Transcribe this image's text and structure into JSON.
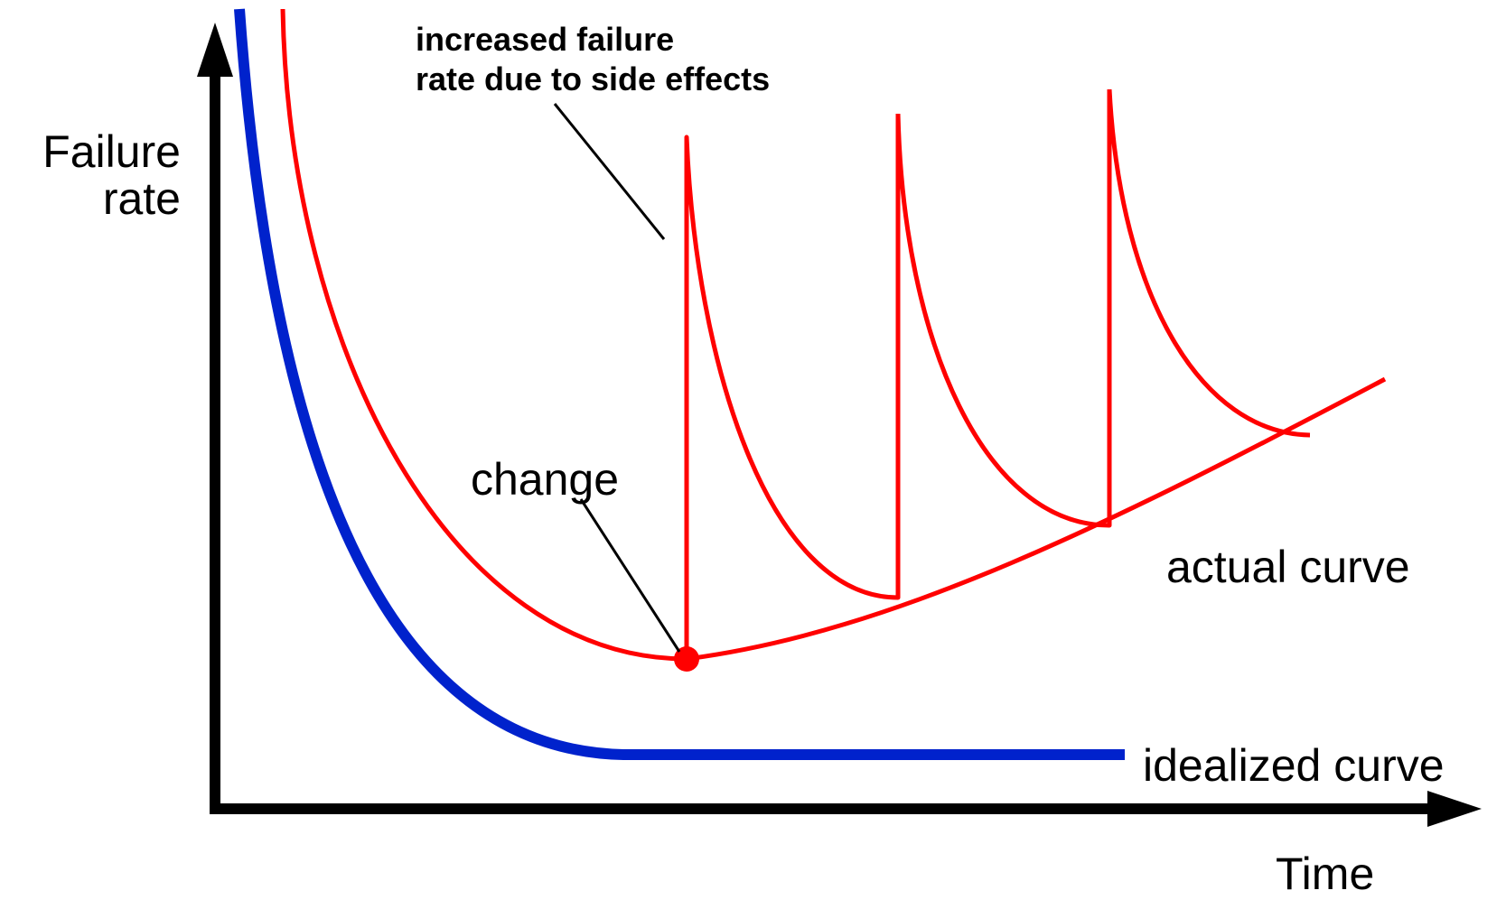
{
  "axes": {
    "y_label_line1": "Failure",
    "y_label_line2": "rate",
    "x_label": "Time"
  },
  "annotations": {
    "side_effects_line1": "increased failure",
    "side_effects_line2": "rate due to side effects",
    "change": "change",
    "actual_curve": "actual curve",
    "idealized_curve": "idealized curve"
  },
  "colors": {
    "actual_curve": "#ff0000",
    "idealized_curve": "#0022cc",
    "axes": "#000000"
  }
}
